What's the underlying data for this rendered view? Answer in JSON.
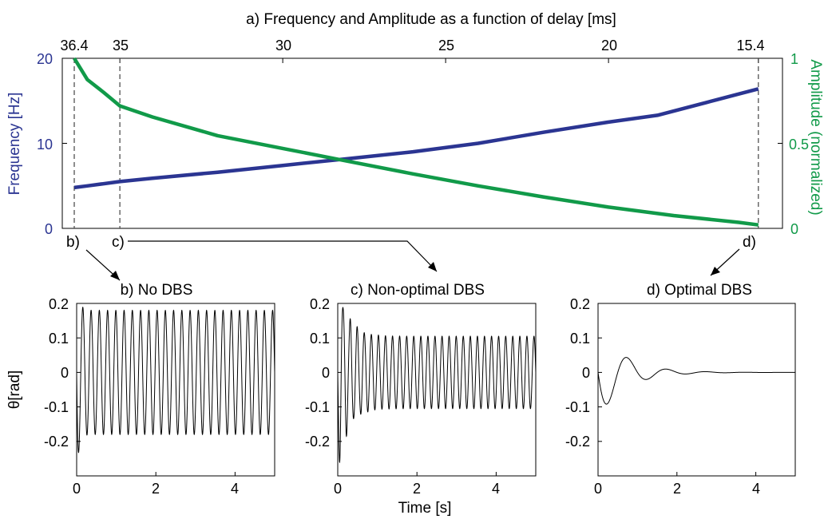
{
  "chart_data": [
    {
      "id": "a",
      "type": "line",
      "title": "a) Frequency and Amplitude as a function of delay [ms]",
      "top_ticks": [
        "36.4",
        "35",
        "30",
        "25",
        "20",
        "15.4"
      ],
      "ylabel_left": "Frequency [Hz]",
      "ylabel_right": "Amplitude (normalized)",
      "yticks_left": [
        "0",
        "10",
        "20"
      ],
      "yticks_right": [
        "0",
        "0.5",
        "1"
      ],
      "ylim_left": [
        0,
        20
      ],
      "ylim_right": [
        0,
        1
      ],
      "xlim": [
        36.4,
        15.4
      ],
      "markers": [
        {
          "delay": 36.4,
          "label": "b)"
        },
        {
          "delay": 35,
          "label": "c)"
        },
        {
          "delay": 15.4,
          "label": "d)"
        }
      ],
      "series": [
        {
          "name": "Frequency",
          "axis": "left",
          "color": "#2b3592",
          "x": [
            36.4,
            36,
            35,
            34,
            32,
            30,
            28,
            26,
            24,
            22,
            20,
            18.5,
            17,
            16,
            15.4
          ],
          "y": [
            4.8,
            5.0,
            5.5,
            5.9,
            6.6,
            7.4,
            8.2,
            9.0,
            10.0,
            11.3,
            12.5,
            13.3,
            14.8,
            15.8,
            16.4
          ]
        },
        {
          "name": "Amplitude",
          "axis": "right",
          "color": "#119a49",
          "x": [
            36.4,
            36.0,
            35.5,
            35,
            34,
            33,
            32,
            30,
            28,
            26,
            24,
            22,
            20,
            18,
            16,
            15.4
          ],
          "y": [
            1.0,
            0.875,
            0.8,
            0.72,
            0.655,
            0.6,
            0.545,
            0.47,
            0.395,
            0.32,
            0.25,
            0.185,
            0.125,
            0.075,
            0.035,
            0.02
          ]
        }
      ]
    },
    {
      "id": "b",
      "type": "line",
      "title": "b) No DBS",
      "ylabel": "θ[rad]",
      "xticks": [
        "0",
        "2",
        "4"
      ],
      "yticks": [
        "0.2",
        "0.1",
        "0",
        "-0.1",
        "-0.2"
      ],
      "xlim": [
        0,
        5
      ],
      "ylim": [
        -0.3,
        0.2
      ],
      "signal": {
        "amplitude": 0.18,
        "frequency_hz": 4.8,
        "initial_min": -0.3,
        "decay": 0
      }
    },
    {
      "id": "c",
      "type": "line",
      "title": "c) Non-optimal DBS",
      "xlabel": "Time [s]",
      "xticks": [
        "0",
        "2",
        "4"
      ],
      "yticks": [
        "0.2",
        "0.1",
        "0",
        "-0.1",
        "-0.2"
      ],
      "xlim": [
        0,
        5
      ],
      "ylim": [
        -0.3,
        0.2
      ],
      "signal": {
        "amplitude": 0.105,
        "frequency_hz": 5.6,
        "initial_min": -0.28,
        "initial_max": 0.18,
        "decay": 0
      }
    },
    {
      "id": "d",
      "type": "line",
      "title": "d) Optimal DBS",
      "xticks": [
        "0",
        "2",
        "4"
      ],
      "yticks": [
        "0.2",
        "0.1",
        "0",
        "-0.1",
        "-0.2"
      ],
      "xlim": [
        0,
        5
      ],
      "ylim": [
        -0.3,
        0.2
      ],
      "signal": {
        "amplitude": 0.13,
        "frequency_hz": 1.0,
        "decay": 1.5
      }
    }
  ]
}
